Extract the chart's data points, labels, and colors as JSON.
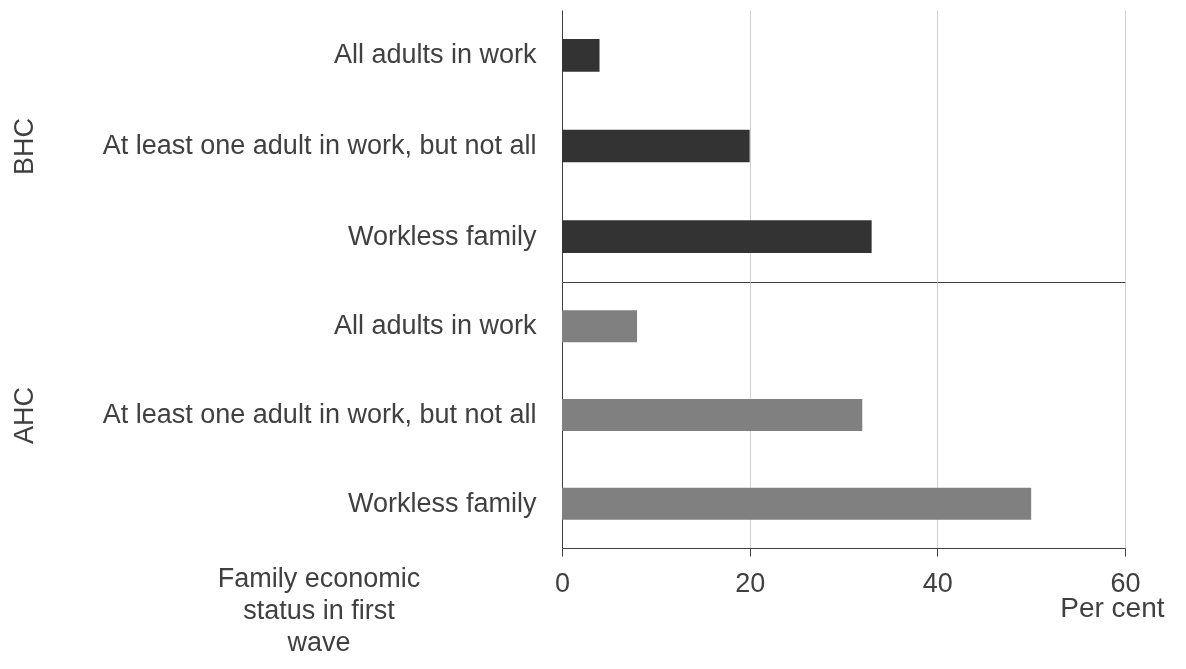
{
  "chart_data": [
    {
      "type": "bar",
      "orientation": "horizontal",
      "ylabel": "BHC",
      "categories": [
        "All adults in work",
        "At least one adult in work, but not all",
        "Workless family"
      ],
      "values": [
        4,
        20,
        33
      ],
      "color": "#333333",
      "xlim": [
        0,
        60
      ],
      "xticks": [
        0,
        20,
        40,
        60
      ],
      "grid": "x",
      "tick_labels": "y"
    },
    {
      "type": "bar",
      "orientation": "horizontal",
      "ylabel": "AHC",
      "xlabel": "Per cent",
      "categories": [
        "All adults in work",
        "At least one adult in work, but not all",
        "Workless family"
      ],
      "values": [
        8,
        32,
        50
      ],
      "color": "#808080",
      "xlim": [
        0,
        60
      ],
      "xticks": [
        0,
        20,
        40,
        60
      ],
      "grid": "x",
      "annotations": [
        "Family economic status in first wave"
      ]
    }
  ]
}
